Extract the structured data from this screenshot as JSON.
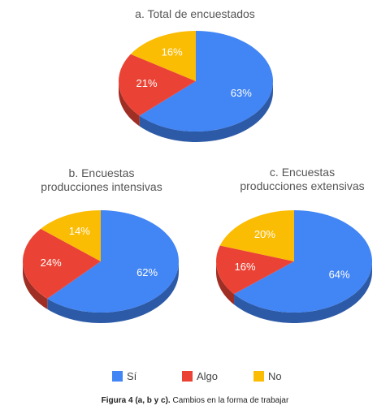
{
  "colors": {
    "si": "#4285F4",
    "algo": "#EA4335",
    "no": "#FBBC04"
  },
  "legend": [
    {
      "label": "Sí",
      "color": "#4285F4"
    },
    {
      "label": "Algo",
      "color": "#EA4335"
    },
    {
      "label": "No",
      "color": "#FBBC04"
    }
  ],
  "caption": {
    "bold": "Figura 4 (a, b y c).",
    "text": " Cambios en la forma de trabajar"
  },
  "chart_data": [
    {
      "type": "pie",
      "title_lines": [
        "a. Total de encuestados"
      ],
      "slices": [
        {
          "category": "Sí",
          "value": 63,
          "label": "63%"
        },
        {
          "category": "Algo",
          "value": 21,
          "label": "21%"
        },
        {
          "category": "No",
          "value": 16,
          "label": "16%"
        }
      ]
    },
    {
      "type": "pie",
      "title_lines": [
        "b. Encuestas",
        "producciones intensivas"
      ],
      "slices": [
        {
          "category": "Sí",
          "value": 62,
          "label": "62%"
        },
        {
          "category": "Algo",
          "value": 24,
          "label": "24%"
        },
        {
          "category": "No",
          "value": 14,
          "label": "14%"
        }
      ]
    },
    {
      "type": "pie",
      "title_lines": [
        "c. Encuestas",
        "producciones extensivas"
      ],
      "slices": [
        {
          "category": "Sí",
          "value": 64,
          "label": "64%"
        },
        {
          "category": "Algo",
          "value": 16,
          "label": "16%"
        },
        {
          "category": "No",
          "value": 20,
          "label": "20%"
        }
      ]
    }
  ]
}
